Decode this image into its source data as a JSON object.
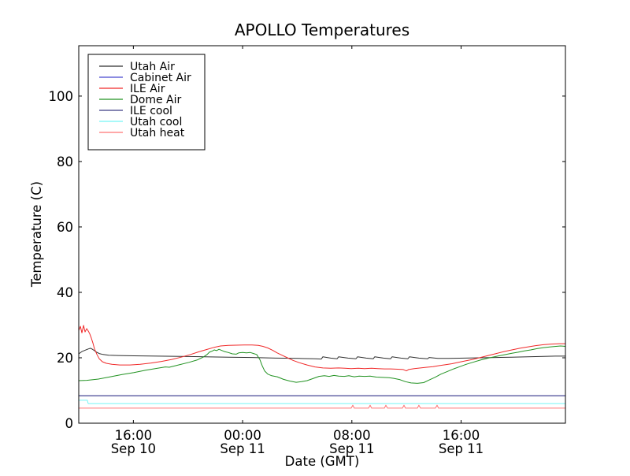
{
  "chart_data": {
    "type": "line",
    "title": "APOLLO Temperatures",
    "xlabel": "Date (GMT)",
    "ylabel": "Temperature (C)",
    "grid": false,
    "background_color": "#ffffff",
    "frame_color": "#000000",
    "x_unit": "hours since Sep 10 12:00 GMT",
    "xlim": [
      0,
      35.64
    ],
    "ylim": [
      0,
      115.4
    ],
    "yticks": [
      0,
      20,
      40,
      60,
      80,
      100
    ],
    "xticks": [
      {
        "t": 4,
        "time": "16:00",
        "date": "Sep 10"
      },
      {
        "t": 12,
        "time": "00:00",
        "date": "Sep 11"
      },
      {
        "t": 20,
        "time": "08:00",
        "date": "Sep 11"
      },
      {
        "t": 28,
        "time": "16:00",
        "date": "Sep 11"
      }
    ],
    "legend_position": "upper left",
    "series": [
      {
        "name": "Utah Air",
        "color": "#2e2e2e",
        "width": 1,
        "points": [
          [
            0,
            21.2
          ],
          [
            0.23,
            21.9
          ],
          [
            0.46,
            22.3
          ],
          [
            0.69,
            22.7
          ],
          [
            0.87,
            22.9
          ],
          [
            1.04,
            22.5
          ],
          [
            1.27,
            21.8
          ],
          [
            1.5,
            21.3
          ],
          [
            1.79,
            21.0
          ],
          [
            2.19,
            20.8
          ],
          [
            2.88,
            20.7
          ],
          [
            4.04,
            20.6
          ],
          [
            5.77,
            20.5
          ],
          [
            7.5,
            20.4
          ],
          [
            9.23,
            20.3
          ],
          [
            10.96,
            20.2
          ],
          [
            12.69,
            20.1
          ],
          [
            14.42,
            19.9
          ],
          [
            16.15,
            19.8
          ],
          [
            17.3,
            19.7
          ],
          [
            17.76,
            19.6
          ],
          [
            17.88,
            20.3
          ],
          [
            18.45,
            19.9
          ],
          [
            18.92,
            19.7
          ],
          [
            19.03,
            20.3
          ],
          [
            19.72,
            19.9
          ],
          [
            20.3,
            19.7
          ],
          [
            20.42,
            20.3
          ],
          [
            21.05,
            19.9
          ],
          [
            21.57,
            19.7
          ],
          [
            21.68,
            20.3
          ],
          [
            22.32,
            19.9
          ],
          [
            22.84,
            19.7
          ],
          [
            22.95,
            20.3
          ],
          [
            23.59,
            19.9
          ],
          [
            24.1,
            19.7
          ],
          [
            24.22,
            20.3
          ],
          [
            24.91,
            19.9
          ],
          [
            25.55,
            19.7
          ],
          [
            25.66,
            20.1
          ],
          [
            26.3,
            19.8
          ],
          [
            27.1,
            19.8
          ],
          [
            28.26,
            19.9
          ],
          [
            29.41,
            20.0
          ],
          [
            30.57,
            20.1
          ],
          [
            31.72,
            20.2
          ],
          [
            32.87,
            20.3
          ],
          [
            34.03,
            20.4
          ],
          [
            34.89,
            20.5
          ],
          [
            35.64,
            20.5
          ]
        ]
      },
      {
        "name": "Cabinet Air",
        "color": "#4747cf",
        "width": 1,
        "points": [
          [
            0,
            8.4
          ],
          [
            35.64,
            8.4
          ]
        ]
      },
      {
        "name": "ILE Air",
        "color": "#f02929",
        "width": 1,
        "points": [
          [
            0,
            28.3
          ],
          [
            0.12,
            29.6
          ],
          [
            0.23,
            27.6
          ],
          [
            0.35,
            29.9
          ],
          [
            0.46,
            27.9
          ],
          [
            0.58,
            28.9
          ],
          [
            0.69,
            28.2
          ],
          [
            0.81,
            27.3
          ],
          [
            0.92,
            26.0
          ],
          [
            1.04,
            24.5
          ],
          [
            1.15,
            22.8
          ],
          [
            1.33,
            21.0
          ],
          [
            1.5,
            19.7
          ],
          [
            1.73,
            18.8
          ],
          [
            2.02,
            18.3
          ],
          [
            2.42,
            18.0
          ],
          [
            3.0,
            17.8
          ],
          [
            3.75,
            17.8
          ],
          [
            4.5,
            18.0
          ],
          [
            5.31,
            18.4
          ],
          [
            6.06,
            18.9
          ],
          [
            6.81,
            19.5
          ],
          [
            7.5,
            20.2
          ],
          [
            8.19,
            21.0
          ],
          [
            8.77,
            21.8
          ],
          [
            9.34,
            22.5
          ],
          [
            9.92,
            23.2
          ],
          [
            10.38,
            23.6
          ],
          [
            10.96,
            23.8
          ],
          [
            12.11,
            23.9
          ],
          [
            12.69,
            23.9
          ],
          [
            13.15,
            23.8
          ],
          [
            13.49,
            23.5
          ],
          [
            13.84,
            23.0
          ],
          [
            14.19,
            22.3
          ],
          [
            14.53,
            21.5
          ],
          [
            14.88,
            20.8
          ],
          [
            15.28,
            20.0
          ],
          [
            15.69,
            19.2
          ],
          [
            16.15,
            18.5
          ],
          [
            16.72,
            17.8
          ],
          [
            17.3,
            17.2
          ],
          [
            17.88,
            16.9
          ],
          [
            18.45,
            16.8
          ],
          [
            19.03,
            16.9
          ],
          [
            19.49,
            16.8
          ],
          [
            19.95,
            16.7
          ],
          [
            20.47,
            16.8
          ],
          [
            20.93,
            16.7
          ],
          [
            21.45,
            16.8
          ],
          [
            21.91,
            16.7
          ],
          [
            22.38,
            16.6
          ],
          [
            22.84,
            16.6
          ],
          [
            23.36,
            16.5
          ],
          [
            23.76,
            16.4
          ],
          [
            23.99,
            16.0
          ],
          [
            24.16,
            16.4
          ],
          [
            24.57,
            16.7
          ],
          [
            25.03,
            16.9
          ],
          [
            25.49,
            17.1
          ],
          [
            25.95,
            17.3
          ],
          [
            26.41,
            17.6
          ],
          [
            26.87,
            17.9
          ],
          [
            27.34,
            18.2
          ],
          [
            27.8,
            18.6
          ],
          [
            28.26,
            19.0
          ],
          [
            28.84,
            19.5
          ],
          [
            29.41,
            20.1
          ],
          [
            29.99,
            20.7
          ],
          [
            30.57,
            21.3
          ],
          [
            31.14,
            21.9
          ],
          [
            31.72,
            22.4
          ],
          [
            32.3,
            22.9
          ],
          [
            32.87,
            23.3
          ],
          [
            33.45,
            23.7
          ],
          [
            34.03,
            24.0
          ],
          [
            34.6,
            24.2
          ],
          [
            35.18,
            24.3
          ],
          [
            35.64,
            24.3
          ]
        ]
      },
      {
        "name": "Dome Air",
        "color": "#219221",
        "width": 1,
        "points": [
          [
            0,
            13.0
          ],
          [
            0.58,
            13.1
          ],
          [
            1.44,
            13.5
          ],
          [
            2.31,
            14.2
          ],
          [
            3.17,
            14.9
          ],
          [
            4.04,
            15.5
          ],
          [
            4.9,
            16.2
          ],
          [
            5.77,
            16.8
          ],
          [
            6.34,
            17.2
          ],
          [
            6.63,
            17.1
          ],
          [
            7.21,
            17.7
          ],
          [
            8.07,
            18.6
          ],
          [
            8.65,
            19.3
          ],
          [
            9.11,
            20.2
          ],
          [
            9.4,
            21.0
          ],
          [
            9.57,
            21.7
          ],
          [
            9.8,
            22.1
          ],
          [
            9.92,
            22.4
          ],
          [
            10.09,
            22.2
          ],
          [
            10.27,
            22.6
          ],
          [
            10.44,
            22.3
          ],
          [
            10.67,
            21.9
          ],
          [
            10.96,
            21.6
          ],
          [
            11.25,
            21.2
          ],
          [
            11.53,
            21.1
          ],
          [
            11.71,
            21.5
          ],
          [
            12.0,
            21.6
          ],
          [
            12.28,
            21.5
          ],
          [
            12.57,
            21.6
          ],
          [
            12.8,
            21.3
          ],
          [
            13.03,
            21.0
          ],
          [
            13.26,
            19.5
          ],
          [
            13.44,
            17.5
          ],
          [
            13.61,
            16.0
          ],
          [
            13.84,
            15.0
          ],
          [
            14.13,
            14.5
          ],
          [
            14.53,
            14.2
          ],
          [
            15.0,
            13.4
          ],
          [
            15.45,
            12.9
          ],
          [
            15.92,
            12.5
          ],
          [
            16.32,
            12.7
          ],
          [
            16.72,
            13.0
          ],
          [
            17.13,
            13.6
          ],
          [
            17.59,
            14.3
          ],
          [
            17.99,
            14.5
          ],
          [
            18.34,
            14.3
          ],
          [
            18.69,
            14.6
          ],
          [
            19.03,
            14.4
          ],
          [
            19.44,
            14.3
          ],
          [
            19.78,
            14.5
          ],
          [
            20.18,
            14.2
          ],
          [
            20.53,
            14.4
          ],
          [
            20.93,
            14.3
          ],
          [
            21.34,
            14.4
          ],
          [
            21.8,
            14.1
          ],
          [
            22.26,
            14.0
          ],
          [
            22.72,
            13.9
          ],
          [
            23.07,
            13.7
          ],
          [
            23.53,
            13.3
          ],
          [
            23.93,
            12.7
          ],
          [
            24.33,
            12.3
          ],
          [
            24.8,
            12.2
          ],
          [
            25.26,
            12.4
          ],
          [
            25.66,
            13.2
          ],
          [
            26.07,
            14.0
          ],
          [
            26.53,
            15.0
          ],
          [
            26.99,
            15.8
          ],
          [
            27.45,
            16.6
          ],
          [
            27.91,
            17.3
          ],
          [
            28.37,
            18.0
          ],
          [
            28.84,
            18.6
          ],
          [
            29.41,
            19.3
          ],
          [
            29.99,
            19.9
          ],
          [
            30.57,
            20.4
          ],
          [
            31.14,
            20.9
          ],
          [
            31.72,
            21.4
          ],
          [
            32.18,
            21.7
          ],
          [
            32.64,
            22.1
          ],
          [
            33.1,
            22.4
          ],
          [
            33.56,
            22.8
          ],
          [
            34.03,
            23.1
          ],
          [
            34.49,
            23.3
          ],
          [
            34.95,
            23.5
          ],
          [
            35.29,
            23.6
          ],
          [
            35.64,
            23.5
          ]
        ]
      },
      {
        "name": "ILE cool",
        "color": "#3c3c85",
        "width": 1,
        "points": [
          [
            0,
            8.4
          ],
          [
            35.64,
            8.4
          ]
        ]
      },
      {
        "name": "Utah cool",
        "color": "#73f5f5",
        "width": 1,
        "points": [
          [
            0,
            7.0
          ],
          [
            0.63,
            7.0
          ],
          [
            0.69,
            6.0
          ],
          [
            35.64,
            6.0
          ]
        ]
      },
      {
        "name": "Utah heat",
        "color": "#ff7373",
        "width": 1,
        "points": [
          [
            0,
            4.6
          ],
          [
            19.95,
            4.6
          ],
          [
            20.07,
            5.5
          ],
          [
            20.18,
            4.6
          ],
          [
            21.22,
            4.6
          ],
          [
            21.34,
            5.5
          ],
          [
            21.45,
            4.6
          ],
          [
            22.38,
            4.6
          ],
          [
            22.49,
            5.5
          ],
          [
            22.61,
            4.6
          ],
          [
            23.7,
            4.6
          ],
          [
            23.82,
            5.5
          ],
          [
            23.93,
            4.6
          ],
          [
            24.8,
            4.6
          ],
          [
            24.91,
            5.5
          ],
          [
            25.03,
            4.6
          ],
          [
            26.12,
            4.6
          ],
          [
            26.24,
            5.5
          ],
          [
            26.35,
            4.6
          ],
          [
            35.64,
            4.6
          ]
        ]
      }
    ]
  }
}
